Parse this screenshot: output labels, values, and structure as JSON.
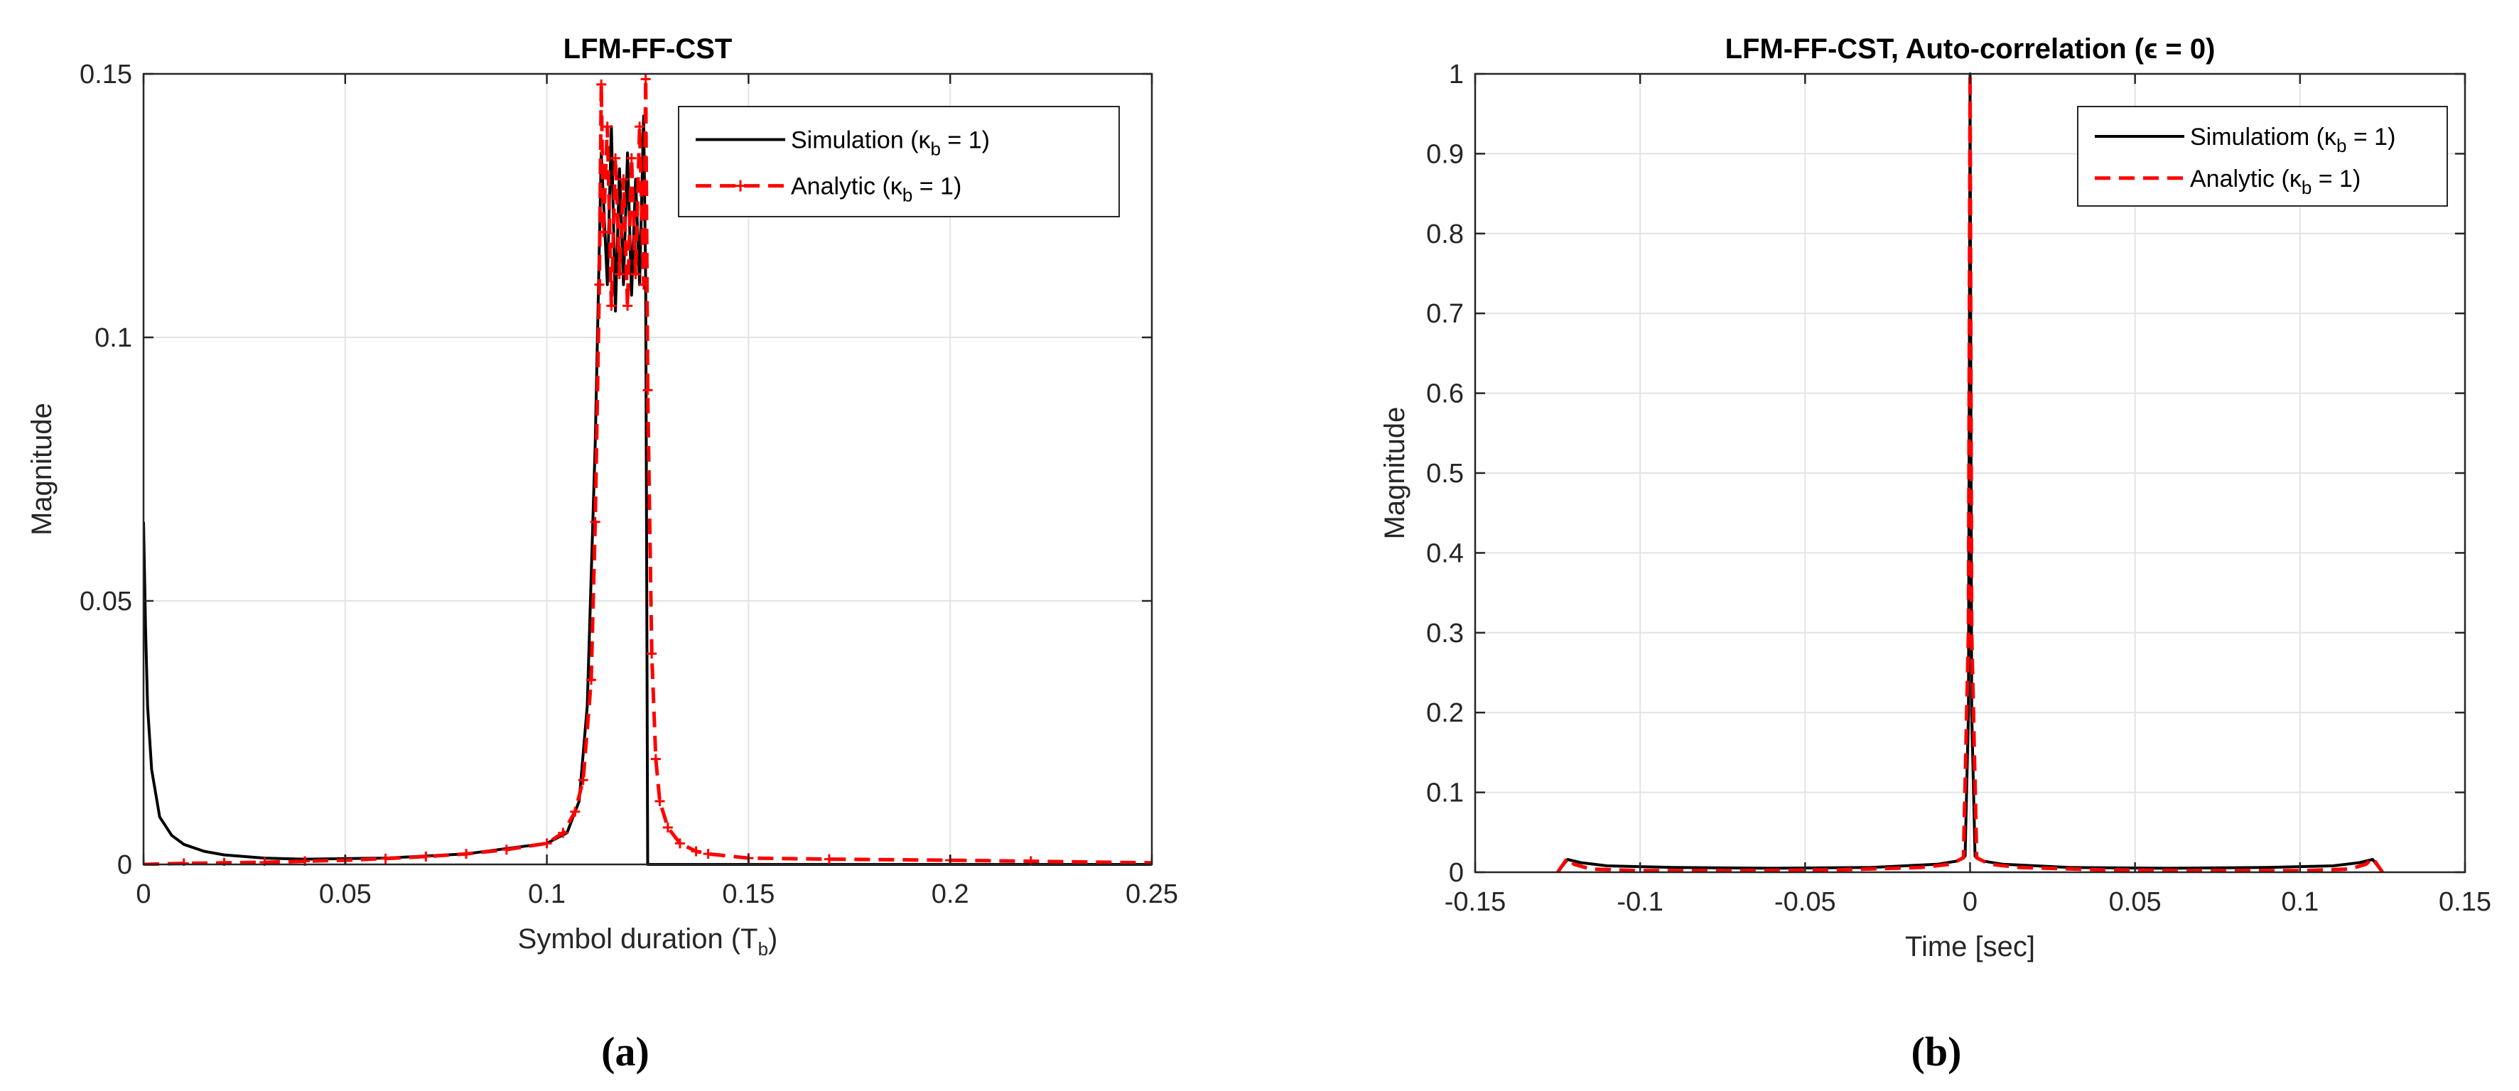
{
  "chart_data": [
    {
      "type": "line",
      "title": "LFM-FF-CST",
      "xlabel": "Symbol duration (T",
      "xlabel_sub": "b",
      "xlabel_suffix": ")",
      "ylabel": "Magnitude",
      "xlim": [
        0,
        0.25
      ],
      "ylim": [
        0,
        0.15
      ],
      "xticks": [
        "0",
        "0.05",
        "0.1",
        "0.15",
        "0.2",
        "0.25"
      ],
      "yticks": [
        "0",
        "0.05",
        "0.1",
        "0.15"
      ],
      "grid": true,
      "legend_position": "top-right",
      "caption": "(a)",
      "series": [
        {
          "name": "Simulation (κ",
          "name_sub": "b",
          "name_suffix": " = 1)",
          "color": "#000000",
          "style": "solid",
          "x": [
            0,
            0.0005,
            0.001,
            0.002,
            0.004,
            0.007,
            0.01,
            0.015,
            0.02,
            0.03,
            0.04,
            0.06,
            0.08,
            0.09,
            0.1,
            0.105,
            0.108,
            0.11,
            0.112,
            0.1135,
            0.115,
            0.116,
            0.117,
            0.118,
            0.119,
            0.12,
            0.121,
            0.122,
            0.123,
            0.124,
            0.1245,
            0.125,
            0.1255,
            0.13,
            0.15,
            0.2,
            0.25
          ],
          "y": [
            0.065,
            0.045,
            0.03,
            0.018,
            0.009,
            0.0055,
            0.0038,
            0.0025,
            0.0018,
            0.0012,
            0.001,
            0.0012,
            0.002,
            0.003,
            0.004,
            0.006,
            0.012,
            0.03,
            0.08,
            0.135,
            0.11,
            0.14,
            0.105,
            0.132,
            0.11,
            0.135,
            0.108,
            0.13,
            0.11,
            0.142,
            0.11,
            0.0,
            0.0,
            0.0,
            0.0,
            0.0,
            0.0
          ]
        },
        {
          "name": "Analytic (κ",
          "name_sub": "b",
          "name_suffix": " = 1)",
          "color": "#ff0000",
          "style": "dashed-plus",
          "x": [
            0,
            0.01,
            0.02,
            0.03,
            0.04,
            0.05,
            0.06,
            0.07,
            0.08,
            0.09,
            0.1,
            0.104,
            0.107,
            0.109,
            0.111,
            0.112,
            0.113,
            0.1135,
            0.114,
            0.115,
            0.116,
            0.117,
            0.118,
            0.119,
            0.12,
            0.121,
            0.122,
            0.123,
            0.124,
            0.1245,
            0.125,
            0.126,
            0.127,
            0.128,
            0.13,
            0.133,
            0.137,
            0.14,
            0.15,
            0.17,
            0.2,
            0.22,
            0.25
          ],
          "y": [
            0.0,
            0.0002,
            0.0003,
            0.0004,
            0.0006,
            0.0008,
            0.0011,
            0.0015,
            0.002,
            0.0028,
            0.004,
            0.006,
            0.01,
            0.016,
            0.035,
            0.065,
            0.11,
            0.148,
            0.12,
            0.14,
            0.106,
            0.134,
            0.112,
            0.13,
            0.106,
            0.134,
            0.112,
            0.14,
            0.11,
            0.149,
            0.09,
            0.04,
            0.02,
            0.012,
            0.007,
            0.004,
            0.0025,
            0.002,
            0.0012,
            0.001,
            0.0008,
            0.0006,
            0.0003
          ]
        }
      ]
    },
    {
      "type": "line",
      "title": "LFM-FF-CST,  Auto-correlation (ϵ = 0)",
      "xlabel": "Time [sec]",
      "ylabel": "Magnitude",
      "xlim": [
        -0.15,
        0.15
      ],
      "ylim": [
        0,
        1
      ],
      "xticks": [
        "-0.15",
        "-0.1",
        "-0.05",
        "0",
        "0.05",
        "0.1",
        "0.15"
      ],
      "yticks": [
        "0",
        "0.1",
        "0.2",
        "0.3",
        "0.4",
        "0.5",
        "0.6",
        "0.7",
        "0.8",
        "0.9",
        "1"
      ],
      "grid": true,
      "legend_position": "top-right",
      "caption": "(b)",
      "series": [
        {
          "name": "Simulatiom (κ",
          "name_sub": "b",
          "name_suffix": " = 1)",
          "color": "#000000",
          "style": "solid",
          "x": [
            -0.125,
            -0.122,
            -0.118,
            -0.11,
            -0.09,
            -0.06,
            -0.03,
            -0.01,
            -0.004,
            -0.0015,
            -0.0005,
            0,
            0.0005,
            0.0015,
            0.004,
            0.01,
            0.03,
            0.06,
            0.09,
            0.11,
            0.118,
            0.122,
            0.125
          ],
          "y": [
            0.0,
            0.016,
            0.012,
            0.008,
            0.006,
            0.005,
            0.006,
            0.01,
            0.014,
            0.02,
            0.2,
            1.0,
            0.2,
            0.02,
            0.014,
            0.01,
            0.006,
            0.005,
            0.006,
            0.008,
            0.012,
            0.016,
            0.0
          ]
        },
        {
          "name": "Analytic (κ",
          "name_sub": "b",
          "name_suffix": " = 1)",
          "color": "#ff0000",
          "style": "dashed",
          "x": [
            -0.125,
            -0.122,
            -0.12,
            -0.115,
            -0.1,
            -0.07,
            -0.04,
            -0.015,
            -0.006,
            -0.002,
            -0.0005,
            0,
            0.0005,
            0.002,
            0.006,
            0.015,
            0.04,
            0.07,
            0.1,
            0.115,
            0.12,
            0.122,
            0.125
          ],
          "y": [
            0.0,
            0.018,
            0.01,
            0.004,
            0.002,
            0.002,
            0.003,
            0.006,
            0.01,
            0.018,
            0.3,
            1.0,
            0.3,
            0.018,
            0.01,
            0.006,
            0.003,
            0.002,
            0.002,
            0.004,
            0.01,
            0.018,
            0.0
          ]
        }
      ]
    }
  ]
}
